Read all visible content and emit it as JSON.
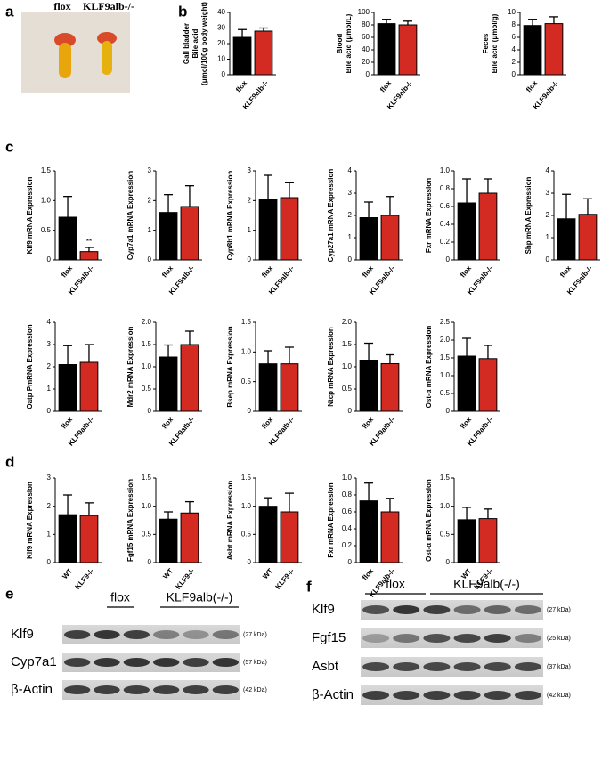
{
  "panels": [
    "a",
    "b",
    "c",
    "d",
    "e",
    "f"
  ],
  "photo": {
    "labels": [
      "flox",
      "KLF9alb-/-"
    ]
  },
  "chart_data": [
    {
      "type": "bar",
      "ylabel": [
        "Gall bladder",
        "Bile acid",
        "(μmol/100g body weight)"
      ],
      "categories": [
        "flox",
        "KLF9alb-/-"
      ],
      "values": [
        24,
        28
      ],
      "errors": [
        5,
        2
      ],
      "colors": [
        "#000000",
        "#d32a22"
      ],
      "ylim": [
        0,
        40
      ],
      "yticks": [
        0,
        10,
        20,
        30,
        40
      ]
    },
    {
      "type": "bar",
      "ylabel": [
        "Blood",
        "Bile acid (μmol/L)"
      ],
      "categories": [
        "flox",
        "KLF9alb-/-"
      ],
      "values": [
        82,
        80
      ],
      "errors": [
        7,
        6
      ],
      "colors": [
        "#000000",
        "#d32a22"
      ],
      "ylim": [
        0,
        100
      ],
      "yticks": [
        0,
        20,
        40,
        60,
        80,
        100
      ]
    },
    {
      "type": "bar",
      "ylabel": [
        "Feces",
        "Bile acid (μmol/g)"
      ],
      "categories": [
        "flox",
        "KLF9alb-/-"
      ],
      "values": [
        7.9,
        8.2
      ],
      "errors": [
        1,
        1.1
      ],
      "colors": [
        "#000000",
        "#d32a22"
      ],
      "ylim": [
        0,
        10
      ],
      "yticks": [
        0,
        2,
        4,
        6,
        8,
        10
      ]
    },
    {
      "type": "bar",
      "ylabel": [
        "Klf9 mRNA Expression"
      ],
      "categories": [
        "flox",
        "KLF9alb-/-"
      ],
      "values": [
        0.72,
        0.14
      ],
      "errors": [
        0.35,
        0.07
      ],
      "colors": [
        "#000000",
        "#d32a22"
      ],
      "ylim": [
        0,
        1.5
      ],
      "yticks": [
        0,
        0.5,
        {
          "value": 1,
          "label": "1.0"
        },
        1.5
      ],
      "annotation": "**"
    },
    {
      "type": "bar",
      "ylabel": [
        "Cyp7a1 mRNA Expression"
      ],
      "categories": [
        "flox",
        "KLF9alb-/-"
      ],
      "values": [
        1.6,
        1.8
      ],
      "errors": [
        0.6,
        0.7
      ],
      "colors": [
        "#000000",
        "#d32a22"
      ],
      "ylim": [
        0,
        3
      ],
      "yticks": [
        0,
        1,
        2,
        3
      ]
    },
    {
      "type": "bar",
      "ylabel": [
        "Cyp8b1 mRNA Expression"
      ],
      "categories": [
        "flox",
        "KLF9alb-/-"
      ],
      "values": [
        2.05,
        2.1
      ],
      "errors": [
        0.8,
        0.5
      ],
      "colors": [
        "#000000",
        "#d32a22"
      ],
      "ylim": [
        0,
        3
      ],
      "yticks": [
        0,
        1,
        2,
        3
      ]
    },
    {
      "type": "bar",
      "ylabel": [
        "Cyp27a1 mRNA Expression"
      ],
      "categories": [
        "flox",
        "KLF9alb-/-"
      ],
      "values": [
        1.9,
        2.0
      ],
      "errors": [
        0.7,
        0.85
      ],
      "colors": [
        "#000000",
        "#d32a22"
      ],
      "ylim": [
        0,
        4
      ],
      "yticks": [
        0,
        1,
        2,
        3,
        4
      ]
    },
    {
      "type": "bar",
      "ylabel": [
        "Fxr mRNA Expression"
      ],
      "categories": [
        "flox",
        "KLF9alb-/-"
      ],
      "values": [
        0.64,
        0.75
      ],
      "errors": [
        0.27,
        0.16
      ],
      "colors": [
        "#000000",
        "#d32a22"
      ],
      "ylim": [
        0,
        1
      ],
      "yticks": [
        0,
        0.2,
        0.4,
        0.6,
        0.8,
        {
          "value": 1,
          "label": "1.0"
        }
      ]
    },
    {
      "type": "bar",
      "ylabel": [
        "Shp mRNA Expression"
      ],
      "categories": [
        "flox",
        "KLF9alb-/-"
      ],
      "values": [
        1.85,
        2.05
      ],
      "errors": [
        1.1,
        0.7
      ],
      "colors": [
        "#000000",
        "#d32a22"
      ],
      "ylim": [
        0,
        4
      ],
      "yticks": [
        0,
        1,
        2,
        3,
        4
      ]
    },
    {
      "type": "bar",
      "ylabel": [
        "Oatp PmRNA Expression"
      ],
      "categories": [
        "flox",
        "KLF9alb-/-"
      ],
      "values": [
        2.1,
        2.2
      ],
      "errors": [
        0.85,
        0.8
      ],
      "colors": [
        "#000000",
        "#d32a22"
      ],
      "ylim": [
        0,
        4
      ],
      "yticks": [
        0,
        1,
        2,
        3,
        4
      ]
    },
    {
      "type": "bar",
      "ylabel": [
        "Mdr2 mRNA Expression"
      ],
      "categories": [
        "flox",
        "KLF9alb-/-"
      ],
      "values": [
        1.22,
        1.5
      ],
      "errors": [
        0.27,
        0.3
      ],
      "colors": [
        "#000000",
        "#d32a22"
      ],
      "ylim": [
        0,
        2
      ],
      "yticks": [
        0,
        0.5,
        {
          "value": 1,
          "label": "1.0"
        },
        1.5,
        {
          "value": 2,
          "label": "2.0"
        }
      ]
    },
    {
      "type": "bar",
      "ylabel": [
        "Bsep mRNA Expression"
      ],
      "categories": [
        "flox",
        "KLF9alb-/-"
      ],
      "values": [
        0.8,
        0.8
      ],
      "errors": [
        0.22,
        0.28
      ],
      "colors": [
        "#000000",
        "#d32a22"
      ],
      "ylim": [
        0,
        1.5
      ],
      "yticks": [
        0,
        0.5,
        {
          "value": 1,
          "label": "1.0"
        },
        1.5
      ]
    },
    {
      "type": "bar",
      "ylabel": [
        "Ntcp mRNA Expression"
      ],
      "categories": [
        "flox",
        "KLF9alb-/-"
      ],
      "values": [
        1.15,
        1.07
      ],
      "errors": [
        0.38,
        0.2
      ],
      "colors": [
        "#000000",
        "#d32a22"
      ],
      "ylim": [
        0,
        2
      ],
      "yticks": [
        0,
        0.5,
        {
          "value": 1,
          "label": "1.0"
        },
        1.5,
        {
          "value": 2,
          "label": "2.0"
        }
      ]
    },
    {
      "type": "bar",
      "ylabel": [
        "Ost-α mRNA Expression"
      ],
      "categories": [
        "flox",
        "KLF9alb-/-"
      ],
      "values": [
        1.55,
        1.48
      ],
      "errors": [
        0.5,
        0.37
      ],
      "colors": [
        "#000000",
        "#d32a22"
      ],
      "ylim": [
        0,
        2.5
      ],
      "yticks": [
        0,
        0.5,
        {
          "value": 1,
          "label": "1.0"
        },
        1.5,
        {
          "value": 2,
          "label": "2.0"
        },
        2.5
      ]
    },
    {
      "type": "bar",
      "ylabel": [
        "Klf9 mRNA Expression"
      ],
      "categories": [
        "WT",
        "KLF9-/-"
      ],
      "values": [
        1.7,
        1.67
      ],
      "errors": [
        0.7,
        0.45
      ],
      "colors": [
        "#000000",
        "#d32a22"
      ],
      "ylim": [
        0,
        3
      ],
      "yticks": [
        0,
        1,
        2,
        3
      ]
    },
    {
      "type": "bar",
      "ylabel": [
        "Fgf15 mRNA Expression"
      ],
      "categories": [
        "WT",
        "KLF9-/-"
      ],
      "values": [
        0.77,
        0.88
      ],
      "errors": [
        0.13,
        0.2
      ],
      "colors": [
        "#000000",
        "#d32a22"
      ],
      "ylim": [
        0,
        1.5
      ],
      "yticks": [
        0,
        0.5,
        {
          "value": 1,
          "label": "1.0"
        },
        1.5
      ]
    },
    {
      "type": "bar",
      "ylabel": [
        "Asbt mRNA Expression"
      ],
      "categories": [
        "WT",
        "KLF9-/-"
      ],
      "values": [
        1.0,
        0.9
      ],
      "errors": [
        0.15,
        0.33
      ],
      "colors": [
        "#000000",
        "#d32a22"
      ],
      "ylim": [
        0,
        1.5
      ],
      "yticks": [
        0,
        0.5,
        {
          "value": 1,
          "label": "1.0"
        },
        1.5
      ]
    },
    {
      "type": "bar",
      "ylabel": [
        "Fxr mRNA Expression"
      ],
      "categories": [
        "flox",
        "KLF9alb-/-"
      ],
      "values": [
        0.73,
        0.6
      ],
      "errors": [
        0.21,
        0.16
      ],
      "colors": [
        "#000000",
        "#d32a22"
      ],
      "ylim": [
        0,
        1
      ],
      "yticks": [
        0,
        0.2,
        0.4,
        0.6,
        0.8,
        {
          "value": 1,
          "label": "1.0"
        }
      ]
    },
    {
      "type": "bar",
      "ylabel": [
        "Ost-α mRNA Expression"
      ],
      "categories": [
        "WT",
        "KLF9-/-"
      ],
      "values": [
        0.76,
        0.78
      ],
      "errors": [
        0.22,
        0.17
      ],
      "colors": [
        "#000000",
        "#d32a22"
      ],
      "ylim": [
        0,
        1.5
      ],
      "yticks": [
        0,
        0.5,
        {
          "value": 1,
          "label": "1.0"
        },
        1.5
      ]
    }
  ],
  "blots": [
    {
      "groups": [
        "flox",
        "KLF9alb(-/-)"
      ],
      "rows": [
        {
          "label": "Klf9",
          "size": "(27 kDa)"
        },
        {
          "label": "Cyp7a1",
          "size": "(57 kDa)"
        },
        {
          "label": "β-Actin",
          "size": "(42 kDa)"
        }
      ]
    },
    {
      "groups": [
        "flox",
        "KLF9alb(-/-)"
      ],
      "rows": [
        {
          "label": "Klf9",
          "size": "(27 kDa)"
        },
        {
          "label": "Fgf15",
          "size": "(25 kDa)"
        },
        {
          "label": "Asbt",
          "size": "(37 kDa)"
        },
        {
          "label": "β-Actin",
          "size": "(42 kDa)"
        }
      ]
    }
  ]
}
